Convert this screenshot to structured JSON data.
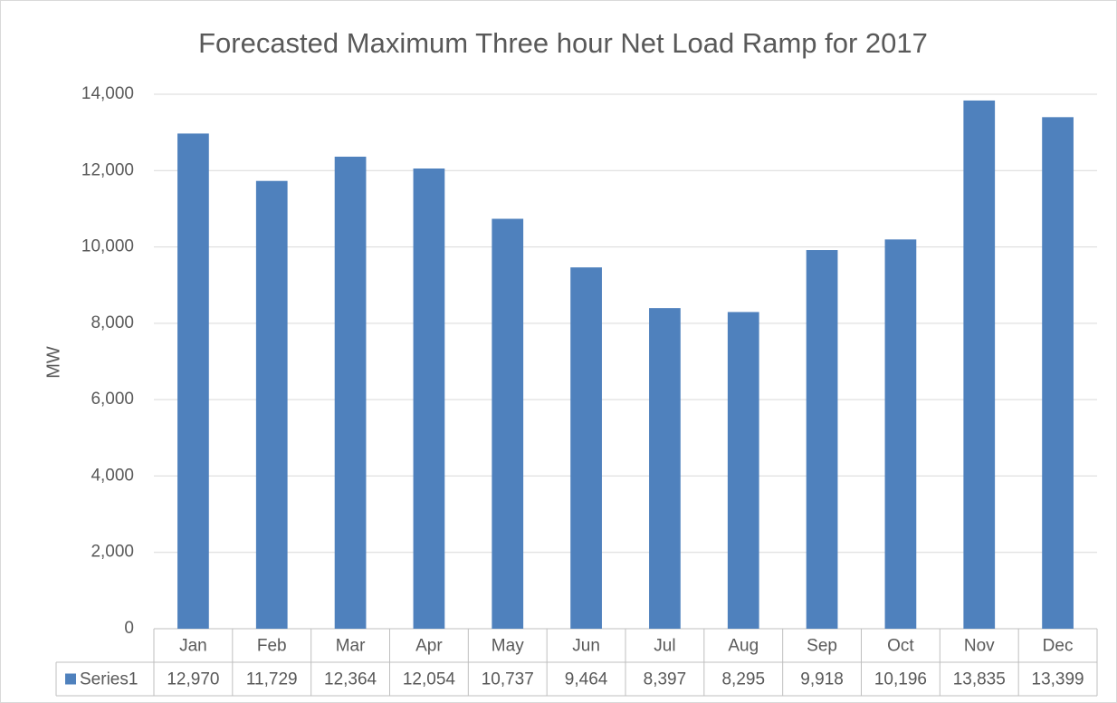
{
  "chart_data": {
    "type": "bar",
    "title": "Forecasted Maximum Three hour Net Load Ramp for 2017",
    "y_label": "MW",
    "categories": [
      "Jan",
      "Feb",
      "Mar",
      "Apr",
      "May",
      "Jun",
      "Jul",
      "Aug",
      "Sep",
      "Oct",
      "Nov",
      "Dec"
    ],
    "series": [
      {
        "name": "Series1",
        "color": "#4f81bd",
        "values": [
          12970,
          11729,
          12364,
          12054,
          10737,
          9464,
          8397,
          8295,
          9918,
          10196,
          13835,
          13399
        ],
        "value_labels": [
          "12,970",
          "11,729",
          "12,364",
          "12,054",
          "10,737",
          "9,464",
          "8,397",
          "8,295",
          "9,918",
          "10,196",
          "13,835",
          "13,399"
        ]
      }
    ],
    "ylim": [
      0,
      14000
    ],
    "yticks": [
      0,
      {
        "value": 2000,
        "label": "2,000"
      },
      {
        "value": 4000,
        "label": "4,000"
      },
      {
        "value": 6000,
        "label": "6,000"
      },
      {
        "value": 8000,
        "label": "8,000"
      },
      {
        "value": 10000,
        "label": "10,000"
      },
      {
        "value": 12000,
        "label": "12,000"
      },
      {
        "value": 14000,
        "label": "14,000"
      }
    ],
    "grid": true
  }
}
